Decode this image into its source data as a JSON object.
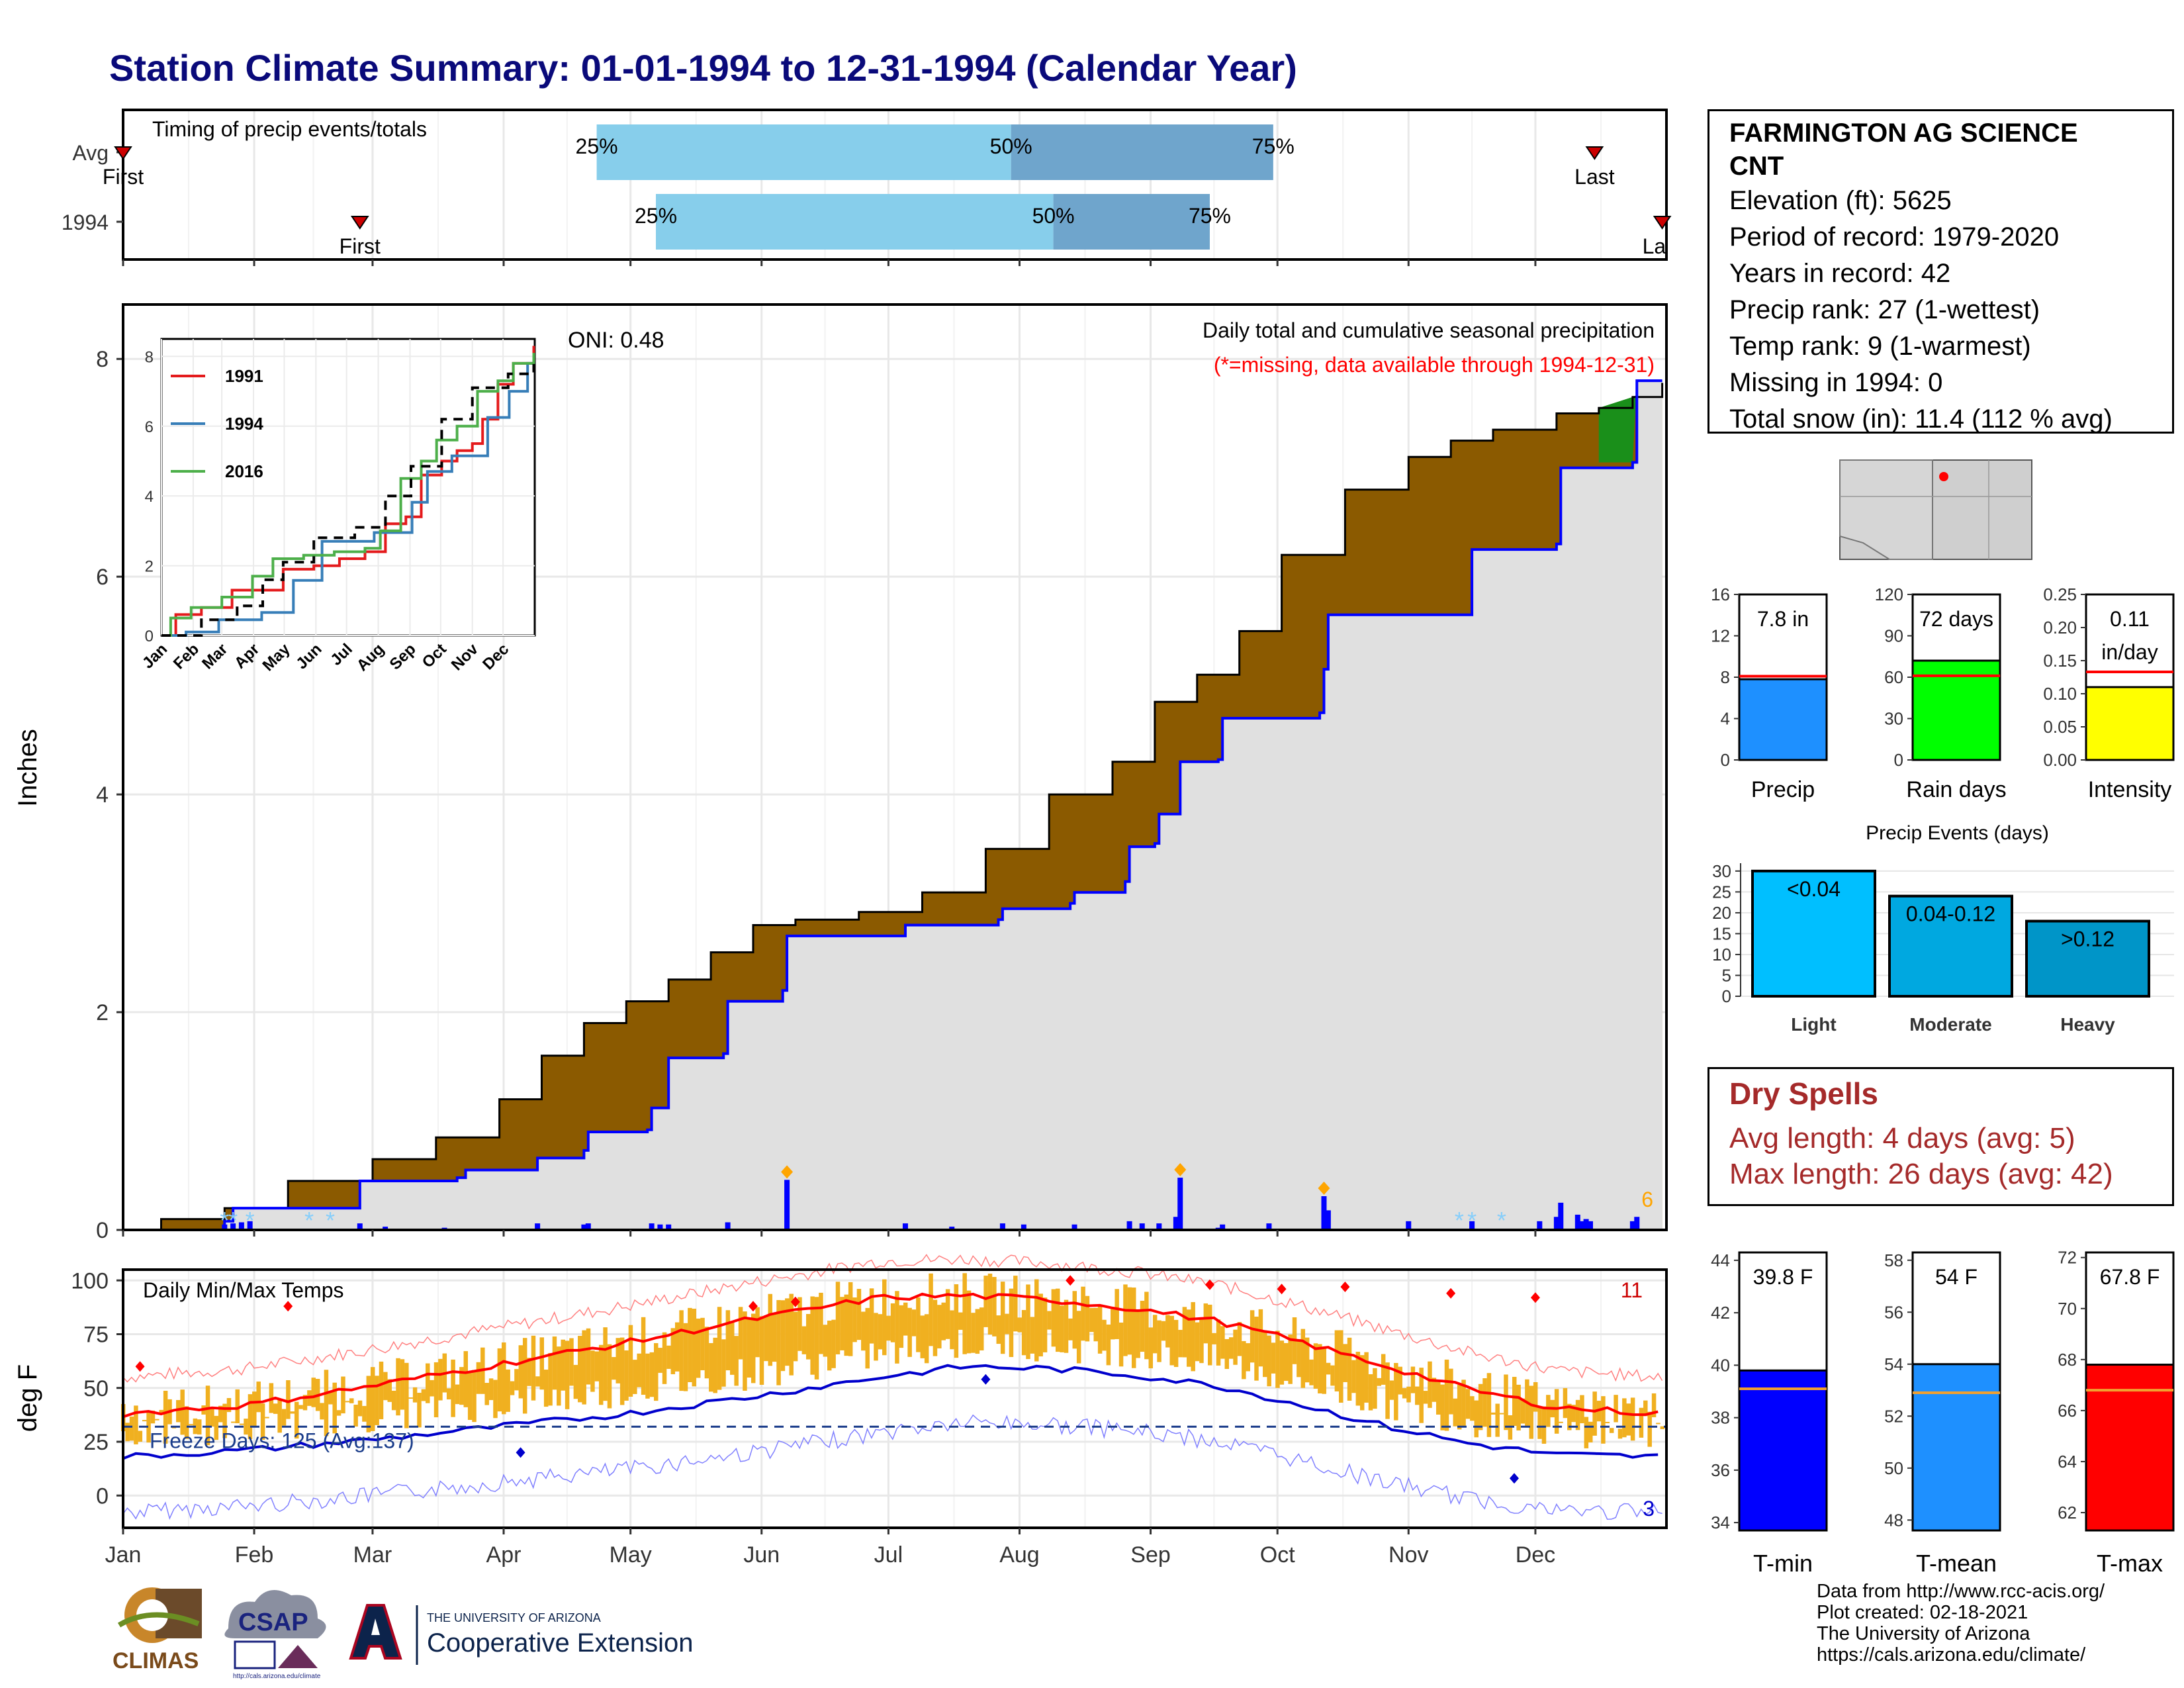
{
  "title": "Station Climate Summary: 01-01-1994 to 12-31-1994 (Calendar Year)",
  "station": {
    "name_line1": "FARMINGTON AG SCIENCE",
    "name_line2": "CNT",
    "elevation": "Elevation (ft): 5625",
    "period": "Period of record: 1979-2020",
    "years": "Years in record: 42",
    "precip_rank": "Precip rank: 27 (1-wettest)",
    "temp_rank": "Temp rank: 9 (1-warmest)",
    "missing": "Missing in 1994: 0",
    "snow": "Total snow (in): 11.4 (112 % avg)"
  },
  "dry_spells": {
    "title": "Dry Spells",
    "avg": "Avg length: 4 days (avg: 5)",
    "max": "Max length: 26 days (avg: 42)"
  },
  "credits": {
    "l1": "Data from http://www.rcc-acis.org/",
    "l2": "Plot created: 02-18-2021",
    "l3": "The University of Arizona",
    "l4": "https://cals.arizona.edu/climate/"
  },
  "logos": {
    "climas": "CLIMAS",
    "csap": "CSAP",
    "csap_url": "http://cals.arizona.edu/climate",
    "ua_small": "THE UNIVERSITY OF ARIZONA",
    "ua_big": "Cooperative Extension"
  },
  "colors": {
    "light_blue": "#87ceeb",
    "steel_blue": "#6fa5cc",
    "brown": "#8b5a00",
    "green": "#1a8f1a",
    "grey_fill": "#e0e0e0",
    "blue_line": "#0000ff",
    "orange": "#f0b020",
    "red": "#ff0000"
  },
  "chart_data": [
    {
      "id": "timing",
      "type": "bar",
      "title": "Timing of precip events/totals",
      "rows": [
        {
          "label": "Avg",
          "first": "Jan 1",
          "q25": "Apr 23",
          "q50": "Jul 30",
          "q75": "Sep 30",
          "last": "Dec 15",
          "first_label": "First",
          "last_label": "Last",
          "q25_label": "25%",
          "q50_label": "50%",
          "q75_label": "75%",
          "first_day": 1,
          "q25_day": 113,
          "q50_day": 211,
          "q75_day": 273,
          "last_day": 349
        },
        {
          "label": "1994",
          "first": "Feb 26",
          "q25_day": 127,
          "q50_day": 221,
          "q75_day": 258,
          "first_day": 57,
          "last_day": 365,
          "first_label": "First",
          "last_label": "La",
          "q25_label": "25%",
          "q50_label": "50%",
          "q75_label": "75%"
        }
      ]
    },
    {
      "id": "cumulative_precip",
      "type": "area",
      "title": "Daily total and cumulative seasonal precipitation",
      "subtitle": "(*=missing, data available through 1994-12-31)",
      "oni": "ONI: 0.48",
      "ylabel": "Inches",
      "ylim": [
        0,
        8.5
      ],
      "yticks": [
        "0",
        "2",
        "4",
        "6",
        "8"
      ],
      "months": [
        "Jan",
        "Feb",
        "Mar",
        "Apr",
        "May",
        "Jun",
        "Jul",
        "Aug",
        "Sep",
        "Oct",
        "Nov",
        "Dec"
      ],
      "corner_count": "6",
      "avg_cumulative": [
        [
          1,
          0
        ],
        [
          10,
          0.1
        ],
        [
          25,
          0.2
        ],
        [
          40,
          0.45
        ],
        [
          60,
          0.65
        ],
        [
          75,
          0.85
        ],
        [
          90,
          1.2
        ],
        [
          100,
          1.6
        ],
        [
          110,
          1.9
        ],
        [
          120,
          2.1
        ],
        [
          130,
          2.3
        ],
        [
          140,
          2.55
        ],
        [
          150,
          2.8
        ],
        [
          160,
          2.85
        ],
        [
          175,
          2.92
        ],
        [
          190,
          3.1
        ],
        [
          205,
          3.5
        ],
        [
          220,
          4.0
        ],
        [
          235,
          4.3
        ],
        [
          245,
          4.85
        ],
        [
          255,
          5.1
        ],
        [
          265,
          5.5
        ],
        [
          275,
          6.2
        ],
        [
          290,
          6.8
        ],
        [
          305,
          7.1
        ],
        [
          315,
          7.25
        ],
        [
          325,
          7.35
        ],
        [
          340,
          7.5
        ],
        [
          350,
          7.55
        ],
        [
          358,
          7.65
        ],
        [
          365,
          7.78
        ]
      ],
      "cumulative_1994": [
        [
          1,
          0
        ],
        [
          25,
          0.08
        ],
        [
          27,
          0.2
        ],
        [
          55,
          0.2
        ],
        [
          57,
          0.45
        ],
        [
          80,
          0.48
        ],
        [
          82,
          0.55
        ],
        [
          98,
          0.55
        ],
        [
          99,
          0.66
        ],
        [
          110,
          0.73
        ],
        [
          111,
          0.9
        ],
        [
          125,
          0.92
        ],
        [
          126,
          1.12
        ],
        [
          129,
          1.12
        ],
        [
          130,
          1.58
        ],
        [
          143,
          1.62
        ],
        [
          144,
          2.1
        ],
        [
          157,
          2.2
        ],
        [
          158,
          2.7
        ],
        [
          185,
          2.7
        ],
        [
          186,
          2.8
        ],
        [
          208,
          2.85
        ],
        [
          209,
          2.95
        ],
        [
          225,
          3.0
        ],
        [
          226,
          3.1
        ],
        [
          238,
          3.2
        ],
        [
          239,
          3.52
        ],
        [
          245,
          3.55
        ],
        [
          246,
          3.82
        ],
        [
          250,
          3.82
        ],
        [
          251,
          4.3
        ],
        [
          260,
          4.32
        ],
        [
          261,
          4.7
        ],
        [
          284,
          4.75
        ],
        [
          285,
          5.15
        ],
        [
          286,
          5.65
        ],
        [
          319,
          5.65
        ],
        [
          320,
          6.25
        ],
        [
          340,
          6.3
        ],
        [
          341,
          7.0
        ],
        [
          358,
          7.05
        ],
        [
          359,
          7.8
        ],
        [
          365,
          7.8
        ]
      ],
      "daily_precip": [
        [
          25,
          0.05
        ],
        [
          27,
          0.06
        ],
        [
          29,
          0.07
        ],
        [
          31,
          0.08
        ],
        [
          57,
          0.06
        ],
        [
          63,
          0.03
        ],
        [
          77,
          0.02
        ],
        [
          99,
          0.06
        ],
        [
          110,
          0.05
        ],
        [
          111,
          0.06
        ],
        [
          126,
          0.06
        ],
        [
          128,
          0.05
        ],
        [
          130,
          0.05
        ],
        [
          144,
          0.07
        ],
        [
          158,
          0.46
        ],
        [
          186,
          0.06
        ],
        [
          197,
          0.03
        ],
        [
          209,
          0.06
        ],
        [
          214,
          0.05
        ],
        [
          226,
          0.05
        ],
        [
          239,
          0.08
        ],
        [
          242,
          0.06
        ],
        [
          246,
          0.06
        ],
        [
          250,
          0.12
        ],
        [
          251,
          0.48
        ],
        [
          260,
          0.02
        ],
        [
          261,
          0.05
        ],
        [
          272,
          0.06
        ],
        [
          285,
          0.31
        ],
        [
          286,
          0.18
        ],
        [
          305,
          0.08
        ],
        [
          320,
          0.08
        ],
        [
          336,
          0.08
        ],
        [
          340,
          0.12
        ],
        [
          341,
          0.25
        ],
        [
          345,
          0.14
        ],
        [
          346,
          0.08
        ],
        [
          347,
          0.1
        ],
        [
          348,
          0.08
        ],
        [
          358,
          0.08
        ],
        [
          359,
          0.12
        ]
      ],
      "inset": {
        "type": "line",
        "yticks": [
          "0",
          "2",
          "4",
          "6",
          "8"
        ],
        "months": [
          "Jan",
          "Feb",
          "Mar",
          "Apr",
          "May",
          "Jun",
          "Jul",
          "Aug",
          "Sep",
          "Oct",
          "Nov",
          "Dec"
        ],
        "series": [
          {
            "name": "1991",
            "color": "#e41a1c",
            "values": [
              [
                1,
                0
              ],
              [
                15,
                0.6
              ],
              [
                40,
                0.8
              ],
              [
                70,
                1.3
              ],
              [
                95,
                1.3
              ],
              [
                120,
                1.9
              ],
              [
                150,
                2.0
              ],
              [
                175,
                2.2
              ],
              [
                200,
                2.4
              ],
              [
                220,
                3.2
              ],
              [
                240,
                3.4
              ],
              [
                255,
                4.6
              ],
              [
                275,
                5.0
              ],
              [
                290,
                5.3
              ],
              [
                305,
                5.5
              ],
              [
                315,
                6.2
              ],
              [
                330,
                7.2
              ],
              [
                345,
                7.8
              ],
              [
                365,
                8.3
              ]
            ]
          },
          {
            "name": "1994",
            "color": "#377eb8",
            "values": [
              [
                1,
                0
              ],
              [
                25,
                0.1
              ],
              [
                57,
                0.45
              ],
              [
                99,
                0.66
              ],
              [
                130,
                1.58
              ],
              [
                158,
                2.7
              ],
              [
                209,
                2.95
              ],
              [
                246,
                3.82
              ],
              [
                261,
                4.7
              ],
              [
                285,
                5.15
              ],
              [
                320,
                6.25
              ],
              [
                341,
                7.0
              ],
              [
                359,
                7.8
              ],
              [
                365,
                7.8
              ]
            ]
          },
          {
            "name": "2016",
            "color": "#4daf4a",
            "values": [
              [
                1,
                0
              ],
              [
                10,
                0.5
              ],
              [
                30,
                0.8
              ],
              [
                60,
                1.1
              ],
              [
                90,
                1.7
              ],
              [
                110,
                2.2
              ],
              [
                140,
                2.3
              ],
              [
                170,
                2.4
              ],
              [
                200,
                2.5
              ],
              [
                215,
                3.0
              ],
              [
                235,
                4.5
              ],
              [
                255,
                5.0
              ],
              [
                270,
                5.6
              ],
              [
                290,
                6.0
              ],
              [
                310,
                7.0
              ],
              [
                330,
                7.3
              ],
              [
                345,
                7.8
              ],
              [
                365,
                8.1
              ]
            ]
          },
          {
            "name": "",
            "color": "#000000",
            "dashed": true,
            "values": [
              [
                1,
                0
              ],
              [
                40,
                0.45
              ],
              [
                75,
                0.85
              ],
              [
                100,
                1.6
              ],
              [
                120,
                2.1
              ],
              [
                150,
                2.8
              ],
              [
                190,
                3.1
              ],
              [
                220,
                4.0
              ],
              [
                245,
                4.85
              ],
              [
                275,
                6.2
              ],
              [
                305,
                7.1
              ],
              [
                340,
                7.5
              ],
              [
                365,
                7.78
              ]
            ]
          }
        ]
      }
    },
    {
      "id": "stat_bars_precip",
      "type": "bar",
      "panels": [
        {
          "label": "Precip",
          "value": 7.8,
          "avg": 8.1,
          "ymax": 16,
          "yticks": [
            "0",
            "4",
            "8",
            "12",
            "16"
          ],
          "text": "7.8 in",
          "color": "#1e90ff"
        },
        {
          "label": "Rain days",
          "value": 72,
          "avg": 61,
          "ymax": 120,
          "yticks": [
            "0",
            "30",
            "60",
            "90",
            "120"
          ],
          "text": "72 days",
          "color": "#00ff00"
        },
        {
          "label": "Intensity",
          "value": 0.11,
          "avg": 0.133,
          "ymax": 0.25,
          "yticks": [
            "0.00",
            "0.05",
            "0.10",
            "0.15",
            "0.20",
            "0.25"
          ],
          "text": "0.11",
          "text2": "in/day",
          "color": "#ffff00"
        }
      ]
    },
    {
      "id": "precip_events",
      "type": "bar",
      "title": "Precip Events (days)",
      "categories": [
        "Light",
        "Moderate",
        "Heavy"
      ],
      "values": [
        30,
        24,
        18
      ],
      "labels": [
        "<0.04",
        "0.04-0.12",
        ">0.12"
      ],
      "ylim": [
        0,
        30
      ],
      "yticks": [
        "0",
        "5",
        "10",
        "15",
        "20",
        "25",
        "30"
      ],
      "colors": [
        "#00bfff",
        "#00a8e0",
        "#0095c8"
      ]
    },
    {
      "id": "temperature",
      "type": "line",
      "title": "Daily Min/Max Temps",
      "ylabel": "deg F",
      "ylim": [
        -15,
        105
      ],
      "yticks": [
        "0",
        "25",
        "50",
        "75",
        "100"
      ],
      "months": [
        "Jan",
        "Feb",
        "Mar",
        "Apr",
        "May",
        "Jun",
        "Jul",
        "Aug",
        "Sep",
        "Oct",
        "Nov",
        "Dec"
      ],
      "freeze_label": "Freeze Days: 125 (Avg:137)",
      "freeze_line": 32,
      "record_high_count": "11",
      "record_low_count": "3",
      "avg_max": [
        [
          1,
          38
        ],
        [
          30,
          42
        ],
        [
          60,
          51
        ],
        [
          90,
          61
        ],
        [
          120,
          71
        ],
        [
          150,
          82
        ],
        [
          180,
          92
        ],
        [
          200,
          93
        ],
        [
          220,
          91
        ],
        [
          240,
          87
        ],
        [
          260,
          81
        ],
        [
          280,
          71
        ],
        [
          300,
          60
        ],
        [
          320,
          49
        ],
        [
          340,
          41
        ],
        [
          365,
          38
        ]
      ],
      "avg_min": [
        [
          1,
          18
        ],
        [
          30,
          21
        ],
        [
          60,
          26
        ],
        [
          90,
          32
        ],
        [
          120,
          38
        ],
        [
          150,
          46
        ],
        [
          180,
          55
        ],
        [
          200,
          60
        ],
        [
          220,
          59
        ],
        [
          240,
          56
        ],
        [
          260,
          51
        ],
        [
          280,
          42
        ],
        [
          300,
          32
        ],
        [
          320,
          24
        ],
        [
          340,
          19
        ],
        [
          365,
          18
        ]
      ]
    },
    {
      "id": "stat_bars_temp",
      "type": "bar",
      "panels": [
        {
          "label": "T-min",
          "value": 39.8,
          "avg": 39.1,
          "ylim": [
            33.7,
            44.3
          ],
          "yticks": [
            "34",
            "36",
            "38",
            "40",
            "42",
            "44"
          ],
          "text": "39.8 F",
          "color": "#0000ff"
        },
        {
          "label": "T-mean",
          "value": 54,
          "avg": 52.9,
          "ylim": [
            47.6,
            58.3
          ],
          "yticks": [
            "48",
            "50",
            "52",
            "54",
            "56",
            "58"
          ],
          "text": "54 F",
          "color": "#1e90ff"
        },
        {
          "label": "T-max",
          "value": 67.8,
          "avg": 66.8,
          "ylim": [
            61.3,
            72.2
          ],
          "yticks": [
            "62",
            "64",
            "66",
            "68",
            "70",
            "72"
          ],
          "text": "67.8 F",
          "color": "#ff0000"
        }
      ]
    }
  ]
}
